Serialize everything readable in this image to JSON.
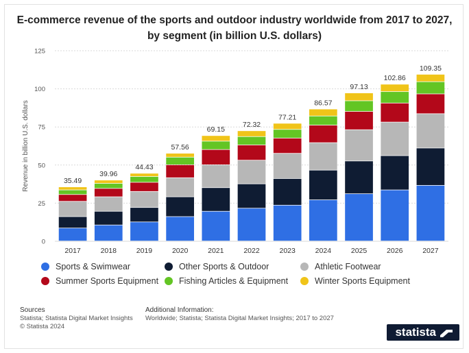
{
  "title": "E-commerce revenue of the sports and outdoor industry worldwide from 2017 to 2027, by segment (in billion U.S. dollars)",
  "chart_data": {
    "type": "bar",
    "stacked": true,
    "title": "E-commerce revenue of the sports and outdoor industry worldwide from 2017 to 2027, by segment (in billion U.S. dollars)",
    "xlabel": "",
    "ylabel": "Revenue in billion U.S. dollars",
    "ylim": [
      0,
      125
    ],
    "yticks": [
      0,
      25,
      50,
      75,
      100,
      125
    ],
    "grid": true,
    "legend_position": "bottom",
    "categories": [
      "2017",
      "2018",
      "2019",
      "2020",
      "2021",
      "2022",
      "2023",
      "2024",
      "2025",
      "2026",
      "2027"
    ],
    "totals": [
      "35.49",
      "39.96",
      "44.43",
      "57.56",
      "69.15",
      "72.32",
      "77.21",
      "86.57",
      "97.13",
      "102.86",
      "109.35"
    ],
    "series": [
      {
        "name": "Sports & Swimwear",
        "color": "#2f6fe4",
        "values": [
          8.5,
          10.5,
          12.5,
          16,
          19.5,
          21.5,
          23.5,
          27,
          31,
          33.5,
          36.5
        ]
      },
      {
        "name": "Other Sports & Outdoor",
        "color": "#0f1c33",
        "values": [
          7.5,
          9,
          9.5,
          13,
          15.5,
          16,
          17.5,
          19.5,
          21.5,
          22.5,
          24.5
        ]
      },
      {
        "name": "Athletic Footwear",
        "color": "#b7b7b7",
        "values": [
          10,
          9.5,
          10.5,
          12.5,
          15,
          15.5,
          16.5,
          18,
          20.5,
          22,
          22.5
        ]
      },
      {
        "name": "Summer Sports Equipment",
        "color": "#b3081a",
        "values": [
          4.5,
          5.5,
          6,
          8.5,
          10,
          10,
          10,
          11.5,
          12,
          12.5,
          13
        ]
      },
      {
        "name": "Fishing Articles & Equipment",
        "color": "#63c524",
        "values": [
          3,
          3.3,
          3.8,
          5,
          5.5,
          5.5,
          5.7,
          6,
          7,
          7.5,
          8
        ]
      },
      {
        "name": "Winter Sports Equipment",
        "color": "#f0c419",
        "values": [
          1.99,
          2.16,
          2.13,
          2.56,
          3.65,
          3.82,
          4.01,
          4.57,
          5.13,
          4.86,
          4.85
        ]
      }
    ]
  },
  "footer": {
    "sources_heading": "Sources",
    "sources_line1": "Statista; Statista Digital Market Insights",
    "sources_line2": "© Statista 2024",
    "additional_heading": "Additional Information:",
    "additional_text": "Worldwide; Statista; Statista Digital Market Insights; 2017 to 2027"
  },
  "brand": {
    "name": "statista"
  }
}
